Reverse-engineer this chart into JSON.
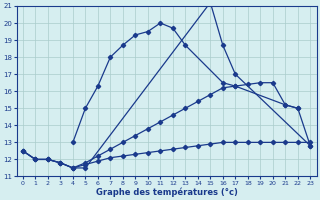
{
  "xlabel": "Graphe des températures (°c)",
  "xlim": [
    -0.5,
    23.5
  ],
  "ylim": [
    11,
    21
  ],
  "xticks": [
    0,
    1,
    2,
    3,
    4,
    5,
    6,
    7,
    8,
    9,
    10,
    11,
    12,
    13,
    14,
    15,
    16,
    17,
    18,
    19,
    20,
    21,
    22,
    23
  ],
  "yticks": [
    11,
    12,
    13,
    14,
    15,
    16,
    17,
    18,
    19,
    20,
    21
  ],
  "bg_color": "#d6eef0",
  "line_color": "#1a3a8c",
  "grid_color": "#aacccc",
  "line1": {
    "x": [
      0,
      1,
      2,
      3,
      4,
      5,
      15,
      16,
      17,
      23
    ],
    "y": [
      12.5,
      12.0,
      12.0,
      11.8,
      11.5,
      11.5,
      21.2,
      18.7,
      17.0,
      12.8
    ]
  },
  "line2": {
    "x": [
      4,
      5,
      6,
      7,
      8,
      9,
      10,
      11,
      12,
      13,
      16,
      17,
      21,
      22
    ],
    "y": [
      13.0,
      15.0,
      16.3,
      18.0,
      18.7,
      19.3,
      19.5,
      20.0,
      19.7,
      18.7,
      16.5,
      16.3,
      15.2,
      15.0
    ]
  },
  "line3": {
    "x": [
      0,
      1,
      2,
      3,
      4,
      5,
      6,
      7,
      8,
      9,
      10,
      11,
      12,
      13,
      14,
      15,
      16,
      17,
      18,
      19,
      20,
      21,
      22,
      23
    ],
    "y": [
      12.5,
      12.0,
      12.0,
      11.8,
      11.5,
      11.8,
      12.2,
      12.6,
      13.0,
      13.4,
      13.8,
      14.2,
      14.6,
      15.0,
      15.4,
      15.8,
      16.2,
      16.3,
      16.4,
      16.5,
      16.5,
      15.2,
      15.0,
      12.8
    ]
  },
  "line4": {
    "x": [
      0,
      1,
      2,
      3,
      4,
      5,
      6,
      7,
      8,
      9,
      10,
      11,
      12,
      13,
      14,
      15,
      16,
      17,
      18,
      19,
      20,
      21,
      22,
      23
    ],
    "y": [
      12.5,
      12.0,
      12.0,
      11.8,
      11.5,
      11.7,
      11.9,
      12.1,
      12.2,
      12.3,
      12.4,
      12.5,
      12.6,
      12.7,
      12.8,
      12.9,
      13.0,
      13.0,
      13.0,
      13.0,
      13.0,
      13.0,
      13.0,
      13.0
    ]
  }
}
